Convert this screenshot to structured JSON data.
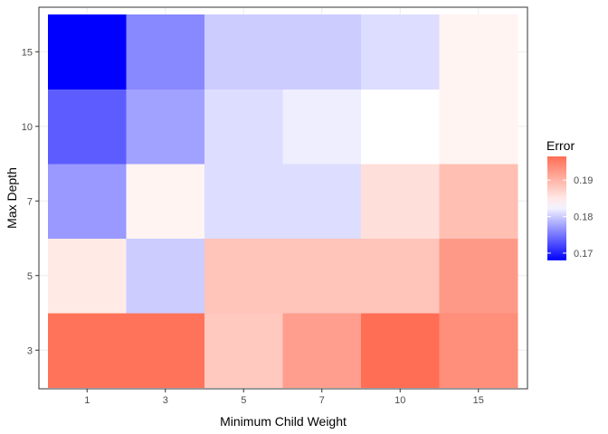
{
  "chart_data": {
    "type": "heatmap",
    "xlabel": "Minimum Child Weight",
    "ylabel": "Max Depth",
    "x_categories": [
      "1",
      "3",
      "5",
      "7",
      "10",
      "15"
    ],
    "y_categories": [
      "3",
      "5",
      "7",
      "10",
      "15"
    ],
    "values": [
      [
        0.196,
        0.196,
        0.188,
        0.192,
        0.1965,
        0.1935
      ],
      [
        0.185,
        0.18,
        0.1885,
        0.1885,
        0.1885,
        0.1925
      ],
      [
        0.177,
        0.184,
        0.181,
        0.181,
        0.186,
        0.189
      ],
      [
        0.1735,
        0.1775,
        0.181,
        0.182,
        0.183,
        0.184
      ],
      [
        0.168,
        0.176,
        0.18,
        0.18,
        0.181,
        0.184
      ]
    ],
    "legend": {
      "title": "Error",
      "ticks": [
        "0.17",
        "0.18",
        "0.19"
      ],
      "tick_values": [
        0.17,
        0.18,
        0.19
      ],
      "range": [
        0.168,
        0.1965
      ],
      "midpoint": 0.183,
      "low_color": "#0000ff",
      "mid_color": "#ffffff",
      "high_color": "#ff6e55",
      "position": "right"
    },
    "grid": true,
    "panel_border": true
  }
}
